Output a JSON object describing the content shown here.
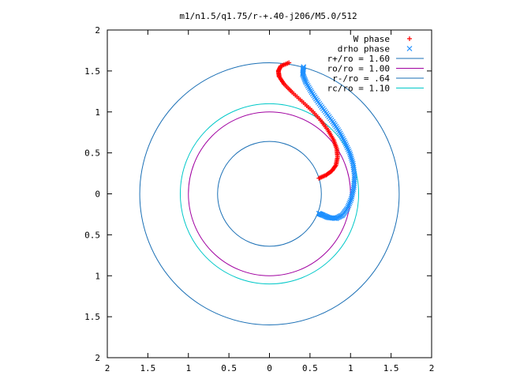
{
  "chart_data": {
    "type": "scatter",
    "title": "m1/n1.5/q1.75/r-+.40-j206/M5.0/512",
    "xlabel": "",
    "ylabel": "",
    "xlim": [
      -2,
      2
    ],
    "ylim": [
      -2,
      2
    ],
    "xticks": [
      -2,
      -1.5,
      -1,
      -0.5,
      0,
      0.5,
      1,
      1.5,
      2
    ],
    "yticks": [
      -2,
      -1.5,
      -1,
      -0.5,
      0,
      0.5,
      1,
      1.5,
      2
    ],
    "xtick_labels": [
      "2",
      "1.5",
      "1",
      "0.5",
      "0",
      "0.5",
      "1",
      "1.5",
      "2"
    ],
    "ytick_labels": [
      "2",
      "1.5",
      "1",
      "0.5",
      "0",
      "0.5",
      "1",
      "1.5",
      "2"
    ],
    "grid": false,
    "legend_position": "top-right",
    "series": [
      {
        "name": "W phase",
        "kind": "points",
        "marker": "plus",
        "color": "#ff0000",
        "points": [
          [
            0.24,
            1.6
          ],
          [
            0.14,
            1.56
          ],
          [
            0.11,
            1.5
          ],
          [
            0.12,
            1.43
          ],
          [
            0.18,
            1.34
          ],
          [
            0.28,
            1.24
          ],
          [
            0.4,
            1.13
          ],
          [
            0.52,
            1.02
          ],
          [
            0.63,
            0.9
          ],
          [
            0.72,
            0.78
          ],
          [
            0.79,
            0.66
          ],
          [
            0.83,
            0.55
          ],
          [
            0.84,
            0.45
          ],
          [
            0.82,
            0.35
          ],
          [
            0.77,
            0.28
          ],
          [
            0.7,
            0.23
          ],
          [
            0.61,
            0.19
          ]
        ]
      },
      {
        "name": "drho phase",
        "kind": "points",
        "marker": "cross",
        "color": "#1e90ff",
        "points": [
          [
            0.42,
            1.55
          ],
          [
            0.41,
            1.46
          ],
          [
            0.45,
            1.36
          ],
          [
            0.52,
            1.24
          ],
          [
            0.6,
            1.12
          ],
          [
            0.69,
            1.0
          ],
          [
            0.78,
            0.88
          ],
          [
            0.86,
            0.76
          ],
          [
            0.93,
            0.63
          ],
          [
            0.99,
            0.5
          ],
          [
            1.03,
            0.37
          ],
          [
            1.05,
            0.22
          ],
          [
            1.04,
            0.08
          ],
          [
            1.01,
            -0.06
          ],
          [
            0.96,
            -0.18
          ],
          [
            0.9,
            -0.26
          ],
          [
            0.82,
            -0.3
          ],
          [
            0.73,
            -0.29
          ],
          [
            0.66,
            -0.26
          ],
          [
            0.61,
            -0.24
          ]
        ]
      },
      {
        "name": "r+/ro = 1.60",
        "kind": "circle",
        "radius": 1.6,
        "color": "#1a6fb5"
      },
      {
        "name": "ro/ro = 1.00",
        "kind": "circle",
        "radius": 1.0,
        "color": "#a000a0"
      },
      {
        "name": "r-/ro = .64",
        "kind": "circle",
        "radius": 0.64,
        "color": "#1a6fb5"
      },
      {
        "name": "rc/ro = 1.10",
        "kind": "circle",
        "radius": 1.1,
        "color": "#00c8c8"
      }
    ]
  }
}
